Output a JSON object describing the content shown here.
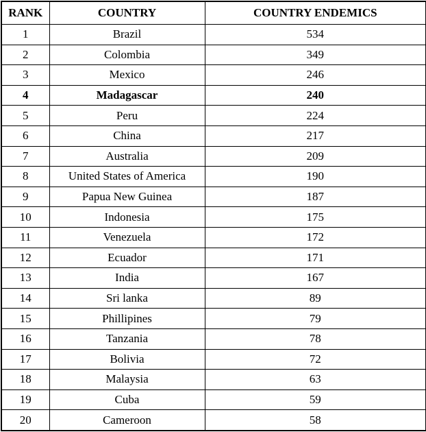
{
  "table": {
    "columns": [
      {
        "label": "RANK"
      },
      {
        "label": "COUNTRY"
      },
      {
        "label": "COUNTRY ENDEMICS"
      }
    ],
    "rows": [
      {
        "rank": "1",
        "country": "Brazil",
        "endemics": "534",
        "bold": false
      },
      {
        "rank": "2",
        "country": "Colombia",
        "endemics": "349",
        "bold": false
      },
      {
        "rank": "3",
        "country": "Mexico",
        "endemics": "246",
        "bold": false
      },
      {
        "rank": "4",
        "country": "Madagascar",
        "endemics": "240",
        "bold": true
      },
      {
        "rank": "5",
        "country": "Peru",
        "endemics": "224",
        "bold": false
      },
      {
        "rank": "6",
        "country": "China",
        "endemics": "217",
        "bold": false
      },
      {
        "rank": "7",
        "country": "Australia",
        "endemics": "209",
        "bold": false
      },
      {
        "rank": "8",
        "country": "United States of America",
        "endemics": "190",
        "bold": false
      },
      {
        "rank": "9",
        "country": "Papua New Guinea",
        "endemics": "187",
        "bold": false
      },
      {
        "rank": "10",
        "country": "Indonesia",
        "endemics": "175",
        "bold": false
      },
      {
        "rank": "11",
        "country": "Venezuela",
        "endemics": "172",
        "bold": false
      },
      {
        "rank": "12",
        "country": "Ecuador",
        "endemics": "171",
        "bold": false
      },
      {
        "rank": "13",
        "country": "India",
        "endemics": "167",
        "bold": false
      },
      {
        "rank": "14",
        "country": "Sri lanka",
        "endemics": "89",
        "bold": false
      },
      {
        "rank": "15",
        "country": "Phillipines",
        "endemics": "79",
        "bold": false
      },
      {
        "rank": "16",
        "country": "Tanzania",
        "endemics": "78",
        "bold": false
      },
      {
        "rank": "17",
        "country": "Bolivia",
        "endemics": "72",
        "bold": false
      },
      {
        "rank": "18",
        "country": "Malaysia",
        "endemics": "63",
        "bold": false
      },
      {
        "rank": "19",
        "country": "Cuba",
        "endemics": "59",
        "bold": false
      },
      {
        "rank": "20",
        "country": "Cameroon",
        "endemics": "58",
        "bold": false
      }
    ]
  },
  "colors": {
    "border": "#000000",
    "text": "#000000",
    "background": "#ffffff"
  }
}
